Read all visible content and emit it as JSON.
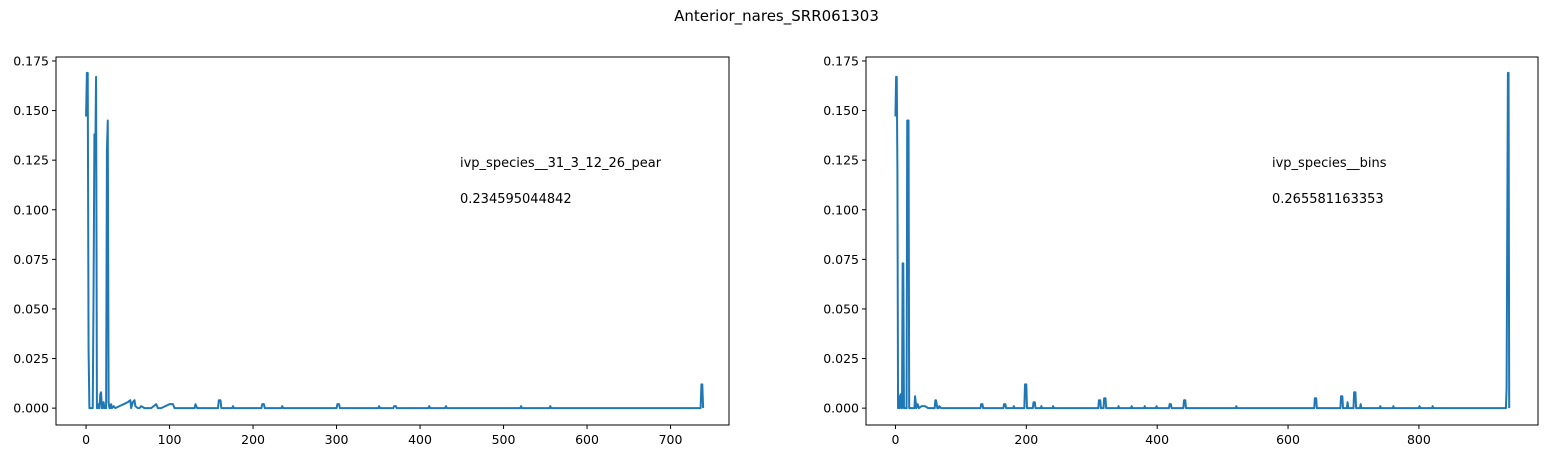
{
  "figure": {
    "title": "Anterior_nares_SRR061303"
  },
  "chart_data": [
    {
      "type": "line",
      "title": "",
      "xlabel": "",
      "ylabel": "",
      "xlim": [
        -36,
        770
      ],
      "ylim": [
        -0.0085,
        0.177
      ],
      "xticks": [
        0,
        100,
        200,
        300,
        400,
        500,
        600,
        700
      ],
      "yticks": [
        0.0,
        0.025,
        0.05,
        0.075,
        0.1,
        0.125,
        0.15,
        0.175
      ],
      "ytick_labels": [
        "0.000",
        "0.025",
        "0.050",
        "0.075",
        "0.100",
        "0.125",
        "0.150",
        "0.175"
      ],
      "grid": false,
      "annotations": [
        "ivp_species__31_3_12_26_pear",
        "0.234595044842"
      ],
      "color": "#1f77b4",
      "series": [
        {
          "x": [
            0,
            1,
            2,
            3,
            4,
            5,
            6,
            7,
            8,
            9,
            10,
            11,
            12,
            13,
            14,
            15,
            16,
            17,
            18,
            19,
            20,
            21,
            22,
            23,
            24,
            25,
            26,
            27,
            28,
            29,
            30,
            31,
            33,
            35,
            40,
            45,
            50,
            53,
            54,
            56,
            58,
            59,
            62,
            64,
            66,
            70,
            74,
            78,
            84,
            86,
            88,
            90,
            95,
            100,
            104,
            106,
            108,
            130,
            131,
            133,
            134,
            158,
            159,
            161,
            162,
            175,
            176,
            177,
            210,
            211,
            213,
            214,
            234,
            235,
            236,
            300,
            301,
            303,
            304,
            350,
            351,
            352,
            368,
            369,
            371,
            372,
            410,
            411,
            412,
            430,
            431,
            432,
            520,
            521,
            522,
            555,
            556,
            557,
            600,
            650,
            700,
            736,
            737,
            738,
            739
          ],
          "y": [
            0.147,
            0.169,
            0.169,
            0.03,
            0.0,
            0.0,
            0.0,
            0.0,
            0.0,
            0.06,
            0.138,
            0.125,
            0.167,
            0.0,
            0.0,
            0.002,
            0.0,
            0.007,
            0.008,
            0.0,
            0.0,
            0.003,
            0.0,
            0.0,
            0.0,
            0.13,
            0.145,
            0.003,
            0.0,
            0.0,
            0.002,
            0.0,
            0.001,
            0.0,
            0.001,
            0.002,
            0.003,
            0.004,
            0.0,
            0.003,
            0.004,
            0.001,
            0.0,
            0.0,
            0.001,
            0.0,
            0.0,
            0.0,
            0.002,
            0.0,
            0.0,
            0.0,
            0.001,
            0.002,
            0.002,
            0.0,
            0.0,
            0.0,
            0.002,
            0.0,
            0.0,
            0.0,
            0.004,
            0.004,
            0.0,
            0.0,
            0.001,
            0.0,
            0.0,
            0.002,
            0.002,
            0.0,
            0.0,
            0.001,
            0.0,
            0.0,
            0.002,
            0.002,
            0.0,
            0.0,
            0.001,
            0.0,
            0.0,
            0.001,
            0.001,
            0.0,
            0.0,
            0.001,
            0.0,
            0.0,
            0.001,
            0.0,
            0.0,
            0.001,
            0.0,
            0.0,
            0.001,
            0.0,
            0.0,
            0.0,
            0.0,
            0.0,
            0.012,
            0.012,
            0.0
          ]
        }
      ]
    },
    {
      "type": "line",
      "title": "",
      "xlabel": "",
      "ylabel": "",
      "xlim": [
        -45,
        982
      ],
      "ylim": [
        -0.0085,
        0.177
      ],
      "xticks": [
        0,
        200,
        400,
        600,
        800
      ],
      "yticks": [
        0.0,
        0.025,
        0.05,
        0.075,
        0.1,
        0.125,
        0.15,
        0.175
      ],
      "ytick_labels": [
        "0.000",
        "0.025",
        "0.050",
        "0.075",
        "0.100",
        "0.125",
        "0.150",
        "0.175"
      ],
      "grid": false,
      "annotations": [
        "ivp_species__bins",
        "0.265581163353"
      ],
      "color": "#1f77b4",
      "series": [
        {
          "x": [
            0,
            1,
            2,
            3,
            4,
            5,
            6,
            7,
            8,
            9,
            10,
            11,
            12,
            13,
            14,
            15,
            16,
            17,
            18,
            19,
            20,
            21,
            22,
            23,
            24,
            25,
            26,
            27,
            28,
            29,
            30,
            32,
            34,
            36,
            40,
            45,
            50,
            60,
            61,
            62,
            64,
            66,
            67,
            70,
            100,
            130,
            131,
            133,
            134,
            165,
            166,
            168,
            169,
            180,
            181,
            182,
            197,
            198,
            200,
            201,
            210,
            211,
            213,
            214,
            222,
            223,
            224,
            240,
            241,
            242,
            300,
            310,
            311,
            313,
            314,
            318,
            319,
            321,
            322,
            340,
            341,
            342,
            360,
            361,
            362,
            380,
            381,
            382,
            398,
            399,
            400,
            418,
            419,
            421,
            422,
            440,
            441,
            443,
            444,
            500,
            520,
            521,
            522,
            600,
            640,
            641,
            643,
            644,
            680,
            681,
            683,
            684,
            690,
            691,
            692,
            700,
            701,
            703,
            704,
            710,
            711,
            712,
            740,
            741,
            742,
            760,
            761,
            762,
            800,
            801,
            802,
            820,
            821,
            822,
            900,
            933,
            934,
            936,
            937,
            938
          ],
          "y": [
            0.147,
            0.167,
            0.167,
            0.12,
            0.0,
            0.0,
            0.0,
            0.006,
            0.007,
            0.0,
            0.0,
            0.073,
            0.073,
            0.0,
            0.0,
            0.0,
            0.0,
            0.0,
            0.145,
            0.145,
            0.145,
            0.0,
            0.0,
            0.0,
            0.0,
            0.0,
            0.0,
            0.0,
            0.0,
            0.0,
            0.006,
            0.0,
            0.002,
            0.0,
            0.001,
            0.001,
            0.0,
            0.0,
            0.004,
            0.004,
            0.0,
            0.0,
            0.001,
            0.0,
            0.0,
            0.0,
            0.002,
            0.002,
            0.0,
            0.0,
            0.002,
            0.002,
            0.0,
            0.0,
            0.001,
            0.0,
            0.0,
            0.012,
            0.012,
            0.0,
            0.0,
            0.003,
            0.003,
            0.0,
            0.0,
            0.001,
            0.0,
            0.0,
            0.001,
            0.0,
            0.0,
            0.0,
            0.004,
            0.004,
            0.0,
            0.0,
            0.005,
            0.005,
            0.0,
            0.0,
            0.001,
            0.0,
            0.0,
            0.001,
            0.0,
            0.0,
            0.001,
            0.0,
            0.0,
            0.001,
            0.0,
            0.0,
            0.002,
            0.002,
            0.0,
            0.0,
            0.004,
            0.004,
            0.0,
            0.0,
            0.0,
            0.001,
            0.0,
            0.0,
            0.0,
            0.005,
            0.005,
            0.0,
            0.0,
            0.006,
            0.006,
            0.0,
            0.0,
            0.003,
            0.0,
            0.0,
            0.008,
            0.008,
            0.0,
            0.0,
            0.002,
            0.0,
            0.0,
            0.001,
            0.0,
            0.0,
            0.001,
            0.0,
            0.0,
            0.001,
            0.0,
            0.0,
            0.001,
            0.0,
            0.0,
            0.0,
            0.01,
            0.169,
            0.169,
            0.0
          ]
        }
      ]
    }
  ]
}
